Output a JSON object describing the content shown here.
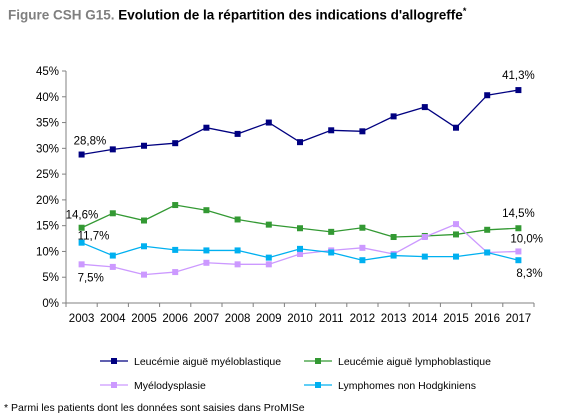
{
  "title": {
    "prefix": "Figure CSH G15.",
    "main": "Evolution de la répartition des indications d'allogreffe",
    "mark": "*"
  },
  "footnote": "* Parmi les patients dont les données sont saisies dans ProMISe",
  "chart_data": {
    "type": "line",
    "title": "Evolution de la répartition des indications d'allogreffe",
    "x": [
      "2003",
      "2004",
      "2005",
      "2006",
      "2007",
      "2008",
      "2009",
      "2010",
      "2011",
      "2012",
      "2013",
      "2014",
      "2015",
      "2016",
      "2017"
    ],
    "ylim": [
      0,
      45
    ],
    "yticks": [
      "0%",
      "5%",
      "10%",
      "15%",
      "20%",
      "25%",
      "30%",
      "35%",
      "40%",
      "45%"
    ],
    "grid": false,
    "legend_position": "bottom",
    "series": [
      {
        "name": "Leucémie aiguë myéloblastique",
        "color": "#000080",
        "marker": "square",
        "values": [
          28.8,
          29.8,
          30.5,
          31.0,
          34.0,
          32.8,
          35.0,
          31.2,
          33.5,
          33.3,
          36.2,
          38.0,
          34.0,
          40.3,
          41.3
        ]
      },
      {
        "name": "Leucémie aiguë lymphoblastique",
        "color": "#339933",
        "marker": "square",
        "values": [
          14.6,
          17.4,
          16.0,
          19.0,
          18.0,
          16.2,
          15.2,
          14.5,
          13.8,
          14.6,
          12.8,
          13.0,
          13.3,
          14.2,
          14.5
        ]
      },
      {
        "name": "Myélodysplasie",
        "color": "#cc99ff",
        "marker": "square",
        "values": [
          7.5,
          7.0,
          5.5,
          6.0,
          7.8,
          7.5,
          7.5,
          9.5,
          10.2,
          10.7,
          9.5,
          12.8,
          15.3,
          9.8,
          10.0
        ]
      },
      {
        "name": "Lymphomes non Hodgkiniens",
        "color": "#00b0f0",
        "marker": "square",
        "values": [
          11.7,
          9.2,
          11.0,
          10.3,
          10.2,
          10.2,
          8.8,
          10.5,
          9.8,
          8.3,
          9.2,
          9.0,
          9.0,
          9.8,
          8.3
        ]
      }
    ],
    "annotations": [
      {
        "series": 0,
        "index": 0,
        "text": "28,8%"
      },
      {
        "series": 0,
        "index": 14,
        "text": "41,3%"
      },
      {
        "series": 1,
        "index": 0,
        "text": "14,6%"
      },
      {
        "series": 1,
        "index": 14,
        "text": "14,5%"
      },
      {
        "series": 3,
        "index": 0,
        "text": "11,7%"
      },
      {
        "series": 2,
        "index": 0,
        "text": "7,5%"
      },
      {
        "series": 2,
        "index": 14,
        "text": "10,0%"
      },
      {
        "series": 3,
        "index": 14,
        "text": "8,3%"
      }
    ]
  }
}
